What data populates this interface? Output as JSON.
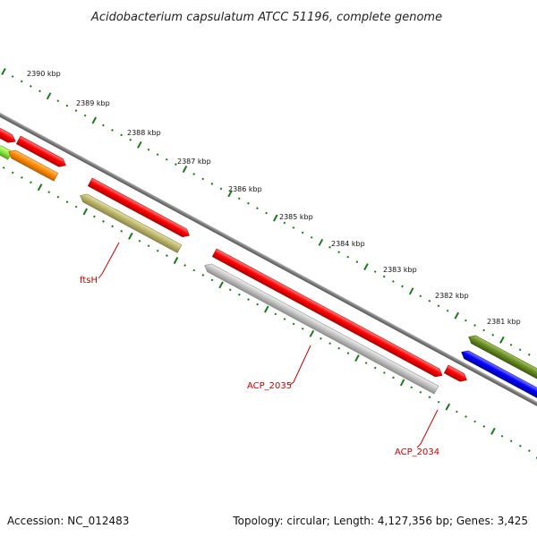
{
  "title": "Acidobacterium capsulatum ATCC 51196, complete genome",
  "footer": {
    "accession": "Accession: NC_012483",
    "summary": "Topology: circular; Length: 4,127,356 bp; Genes: 3,425"
  },
  "scale": {
    "unit": "kbp",
    "ticks": [
      "2390 kbp",
      "2389 kbp",
      "2388 kbp",
      "2387 kbp",
      "2386 kbp",
      "2385 kbp",
      "2384 kbp",
      "2383 kbp",
      "2382 kbp",
      "2381 kbp"
    ]
  },
  "gene_labels": [
    "ftsH",
    "ACP_2035",
    "ACP_2034"
  ],
  "colors": {
    "backbone": "#7a7a7a",
    "tick": "#1a7a1a",
    "cds_red": "#ff0000",
    "cds_orange": "#ff8c00",
    "cds_lime": "#90ee40",
    "cds_khaki": "#bdb76b",
    "cds_gray": "#bfbfbf",
    "cds_olive": "#6b8e23",
    "cds_blue": "#0000ff",
    "label_red": "#cc0000"
  }
}
